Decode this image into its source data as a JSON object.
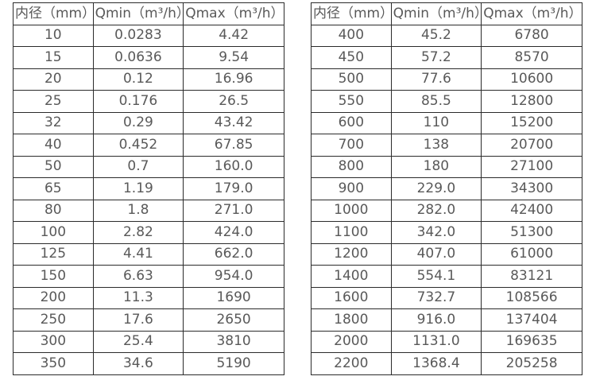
{
  "page": {
    "background": "#ffffff",
    "text_color": "#595959",
    "border_color": "#2b2b2b"
  },
  "tables": [
    {
      "name": "flow-spec-table-dn10-350",
      "headers": [
        "内径（mm）",
        "Qmin（m³/h）",
        "Qmax（m³/h）"
      ],
      "rows": [
        [
          "10",
          "0.0283",
          "4.42"
        ],
        [
          "15",
          "0.0636",
          "9.54"
        ],
        [
          "20",
          "0.12",
          "16.96"
        ],
        [
          "25",
          "0.176",
          "26.5"
        ],
        [
          "32",
          "0.29",
          "43.42"
        ],
        [
          "40",
          "0.452",
          "67.85"
        ],
        [
          "50",
          "0.7",
          "160.0"
        ],
        [
          "65",
          "1.19",
          "179.0"
        ],
        [
          "80",
          "1.8",
          "271.0"
        ],
        [
          "100",
          "2.82",
          "424.0"
        ],
        [
          "125",
          "4.41",
          "662.0"
        ],
        [
          "150",
          "6.63",
          "954.0"
        ],
        [
          "200",
          "11.3",
          "1690"
        ],
        [
          "250",
          "17.6",
          "2650"
        ],
        [
          "300",
          "25.4",
          "3810"
        ],
        [
          "350",
          "34.6",
          "5190"
        ]
      ]
    },
    {
      "name": "flow-spec-table-dn400-2200",
      "headers": [
        "内径（mm）",
        "Qmin（m³/h）",
        "Qmax（m³/h）"
      ],
      "rows": [
        [
          "400",
          "45.2",
          "6780"
        ],
        [
          "450",
          "57.2",
          "8570"
        ],
        [
          "500",
          "77.6",
          "10600"
        ],
        [
          "550",
          "85.5",
          "12800"
        ],
        [
          "600",
          "110",
          "15200"
        ],
        [
          "700",
          "138",
          "20700"
        ],
        [
          "800",
          "180",
          "27100"
        ],
        [
          "900",
          "229.0",
          "34300"
        ],
        [
          "1000",
          "282.0",
          "42400"
        ],
        [
          "1100",
          "342.0",
          "51300"
        ],
        [
          "1200",
          "407.0",
          "61000"
        ],
        [
          "1400",
          "554.1",
          "83121"
        ],
        [
          "1600",
          "732.7",
          "108566"
        ],
        [
          "1800",
          "916.0",
          "137404"
        ],
        [
          "2000",
          "1131.0",
          "169635"
        ],
        [
          "2200",
          "1368.4",
          "205258"
        ]
      ]
    }
  ]
}
